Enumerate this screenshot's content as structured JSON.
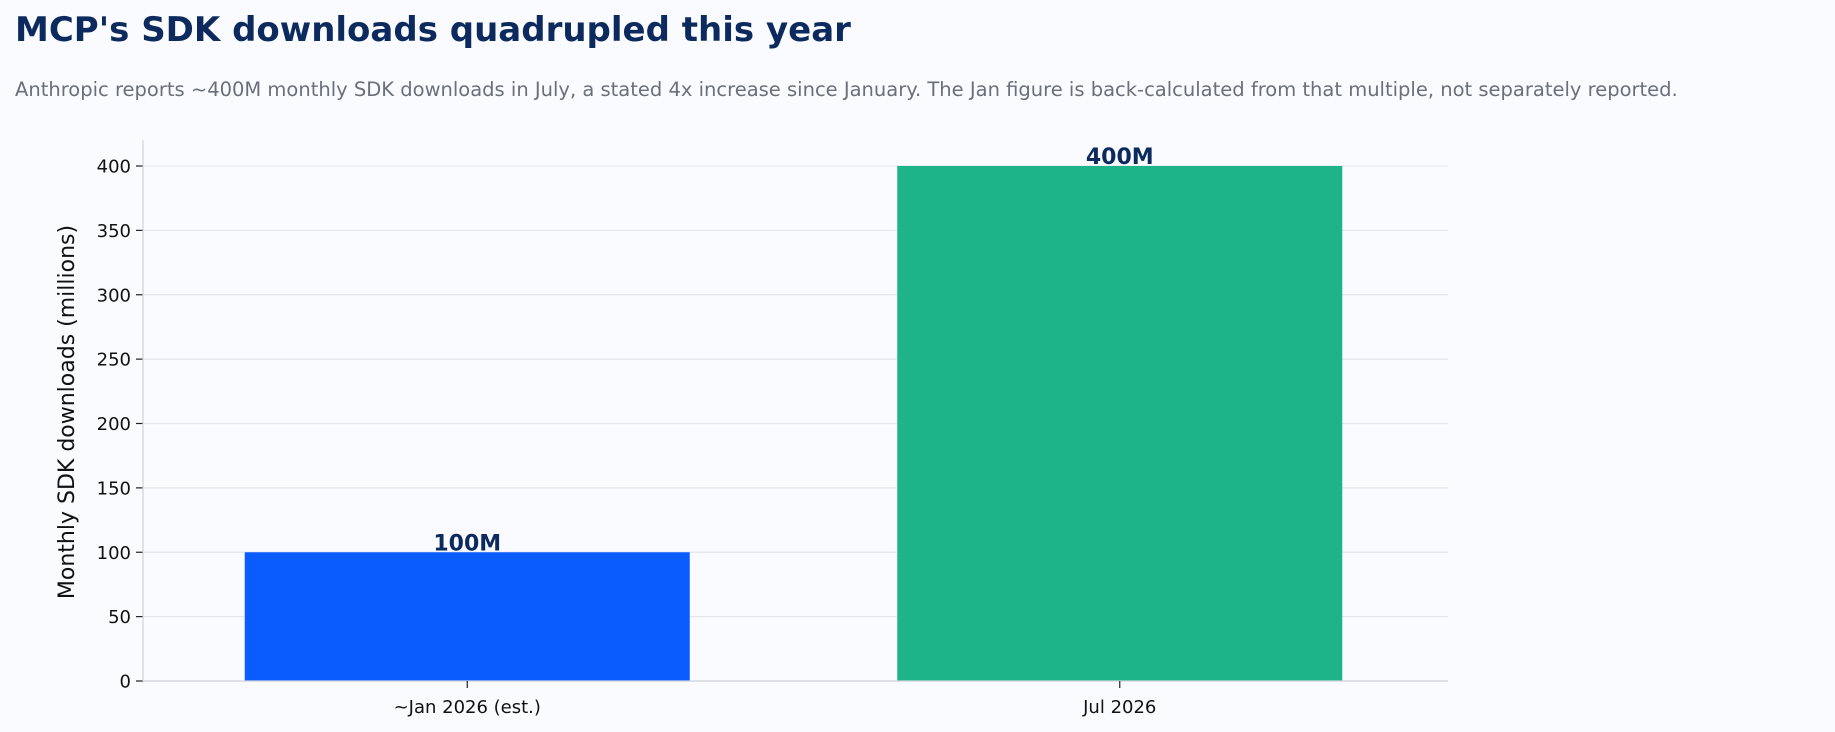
{
  "chart_data": {
    "type": "bar",
    "title": "MCP's SDK downloads quadrupled this year",
    "subtitle": "Anthropic reports ~400M monthly SDK downloads in July, a stated 4x increase since January. The Jan figure is back-calculated from that multiple, not separately reported.",
    "xlabel": "",
    "ylabel": "Monthly SDK downloads (millions)",
    "ylim": [
      0,
      420
    ],
    "yticks": [
      0,
      50,
      100,
      150,
      200,
      250,
      300,
      350,
      400
    ],
    "grid": "horizontal",
    "categories": [
      "~Jan 2026 (est.)",
      "Jul 2026"
    ],
    "values": [
      100,
      400
    ],
    "data_labels": [
      "100M",
      "400M"
    ],
    "colors": [
      "#0b5cff",
      "#1db489"
    ],
    "colors_meta": {
      "title": "#0d2a5e",
      "subtitle": "#6b6f7a",
      "data_label": "#0d2a5e",
      "gridline": "#e3e6eb",
      "background": "#f9fbfe"
    }
  }
}
